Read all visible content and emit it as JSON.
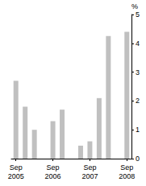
{
  "chart_data": {
    "type": "bar",
    "y_label": "%",
    "categories": [
      "Sep\n2005",
      null,
      null,
      null,
      "Sep\n2006",
      null,
      null,
      null,
      "Sep\n2007",
      null,
      null,
      null,
      "Sep\n2008"
    ],
    "values": [
      2.7,
      1.8,
      1.0,
      null,
      1.3,
      1.7,
      null,
      0.45,
      0.6,
      2.1,
      4.25,
      null,
      4.4
    ],
    "color": "#c0c0c0",
    "ylim": [
      0,
      5
    ],
    "yticks": [
      0,
      1,
      2,
      3,
      4,
      5
    ],
    "grid": false
  }
}
